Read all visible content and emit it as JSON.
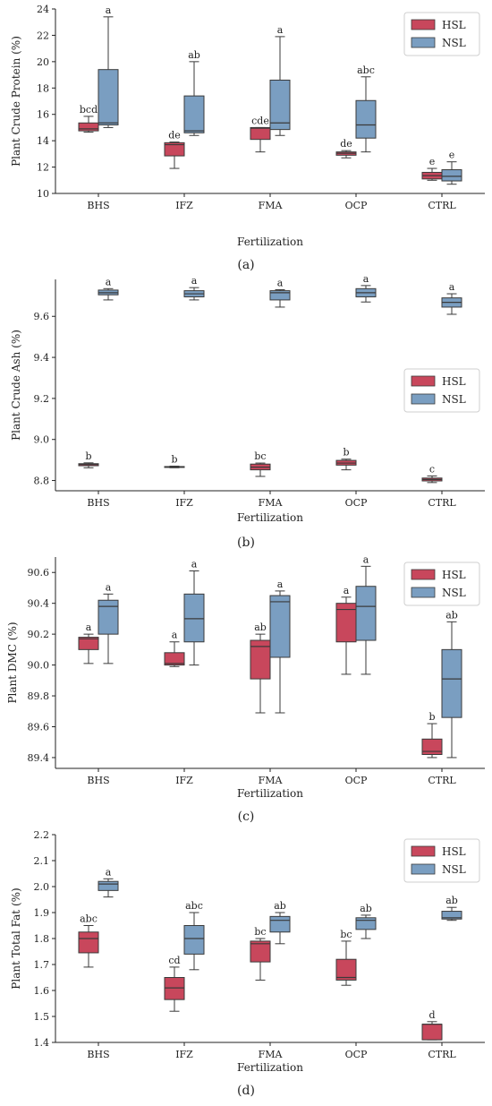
{
  "colors": {
    "HSL": "#c8475c",
    "NSL": "#7a9ec1",
    "line": "#3a3a3a"
  },
  "chart_data": [
    {
      "type": "box",
      "panel": "(a)",
      "ylabel": "Plant Crude Protein (%)",
      "xlabel": "Fertilization",
      "categories": [
        "BHS",
        "IFZ",
        "FMA",
        "OCP",
        "CTRL"
      ],
      "yticks": [
        "10",
        "12",
        "14",
        "16",
        "18",
        "20",
        "22",
        "24"
      ],
      "ylim": [
        10,
        24
      ],
      "legend_position": "top-right",
      "series": [
        {
          "name": "HSL",
          "boxes": [
            {
              "min": 14.65,
              "q1": 14.75,
              "median": 14.9,
              "q3": 15.35,
              "max": 15.85,
              "letter": "bcd"
            },
            {
              "min": 11.9,
              "q1": 12.85,
              "median": 13.7,
              "q3": 13.85,
              "max": 13.9,
              "letter": "de"
            },
            {
              "min": 13.15,
              "q1": 14.1,
              "median": 14.95,
              "q3": 15.0,
              "max": 15.0,
              "letter": "cde"
            },
            {
              "min": 12.7,
              "q1": 12.9,
              "median": 13.05,
              "q3": 13.15,
              "max": 13.25,
              "letter": "de"
            },
            {
              "min": 11.0,
              "q1": 11.1,
              "median": 11.35,
              "q3": 11.6,
              "max": 11.9,
              "letter": "e"
            }
          ]
        },
        {
          "name": "NSL",
          "boxes": [
            {
              "min": 15.0,
              "q1": 15.2,
              "median": 15.35,
              "q3": 19.4,
              "max": 23.4,
              "letter": "a"
            },
            {
              "min": 14.4,
              "q1": 14.6,
              "median": 14.75,
              "q3": 17.4,
              "max": 20.0,
              "letter": "ab"
            },
            {
              "min": 14.4,
              "q1": 14.85,
              "median": 15.35,
              "q3": 18.6,
              "max": 21.9,
              "letter": "a"
            },
            {
              "min": 13.15,
              "q1": 14.2,
              "median": 15.2,
              "q3": 17.05,
              "max": 18.85,
              "letter": "abc"
            },
            {
              "min": 10.7,
              "q1": 10.95,
              "median": 11.3,
              "q3": 11.8,
              "max": 12.4,
              "letter": "e"
            }
          ]
        }
      ]
    },
    {
      "type": "box",
      "panel": "(b)",
      "ylabel": "Plant Crude Ash (%)",
      "xlabel": "Fertilization",
      "categories": [
        "BHS",
        "IFZ",
        "FMA",
        "OCP",
        "CTRL"
      ],
      "yticks": [
        "8.8",
        "9.0",
        "9.2",
        "9.4",
        "9.6"
      ],
      "ylim": [
        8.75,
        9.78
      ],
      "legend_position": "center-right",
      "series": [
        {
          "name": "HSL",
          "boxes": [
            {
              "min": 8.862,
              "q1": 8.872,
              "median": 8.878,
              "q3": 8.882,
              "max": 8.886,
              "letter": "b"
            },
            {
              "min": 8.862,
              "q1": 8.864,
              "median": 8.866,
              "q3": 8.868,
              "max": 8.87,
              "letter": "b"
            },
            {
              "min": 8.82,
              "q1": 8.852,
              "median": 8.865,
              "q3": 8.88,
              "max": 8.885,
              "letter": "bc"
            },
            {
              "min": 8.852,
              "q1": 8.875,
              "median": 8.885,
              "q3": 8.898,
              "max": 8.904,
              "letter": "b"
            },
            {
              "min": 8.79,
              "q1": 8.798,
              "median": 8.805,
              "q3": 8.812,
              "max": 8.822,
              "letter": "c"
            }
          ]
        },
        {
          "name": "NSL",
          "boxes": [
            {
              "min": 9.68,
              "q1": 9.705,
              "median": 9.715,
              "q3": 9.728,
              "max": 9.735,
              "letter": "a"
            },
            {
              "min": 9.68,
              "q1": 9.695,
              "median": 9.71,
              "q3": 9.725,
              "max": 9.74,
              "letter": "a"
            },
            {
              "min": 9.645,
              "q1": 9.68,
              "median": 9.715,
              "q3": 9.725,
              "max": 9.73,
              "letter": "a"
            },
            {
              "min": 9.67,
              "q1": 9.695,
              "median": 9.715,
              "q3": 9.735,
              "max": 9.75,
              "letter": "a"
            },
            {
              "min": 9.61,
              "q1": 9.645,
              "median": 9.668,
              "q3": 9.69,
              "max": 9.71,
              "letter": "a"
            }
          ]
        }
      ]
    },
    {
      "type": "box",
      "panel": "(c)",
      "ylabel": "Plant DMC (%)",
      "xlabel": "Fertilization",
      "categories": [
        "BHS",
        "IFZ",
        "FMA",
        "OCP",
        "CTRL"
      ],
      "yticks": [
        "89.4",
        "89.6",
        "89.8",
        "90.0",
        "90.2",
        "90.4",
        "90.6"
      ],
      "ylim": [
        89.33,
        90.7
      ],
      "legend_position": "top-right",
      "series": [
        {
          "name": "HSL",
          "boxes": [
            {
              "min": 90.01,
              "q1": 90.1,
              "median": 90.17,
              "q3": 90.18,
              "max": 90.2,
              "letter": "a"
            },
            {
              "min": 89.99,
              "q1": 90.0,
              "median": 90.01,
              "q3": 90.08,
              "max": 90.15,
              "letter": "a"
            },
            {
              "min": 89.69,
              "q1": 89.91,
              "median": 90.12,
              "q3": 90.16,
              "max": 90.2,
              "letter": "ab"
            },
            {
              "min": 89.94,
              "q1": 90.15,
              "median": 90.36,
              "q3": 90.4,
              "max": 90.44,
              "letter": "a"
            },
            {
              "min": 89.4,
              "q1": 89.42,
              "median": 89.44,
              "q3": 89.52,
              "max": 89.62,
              "letter": "b"
            }
          ]
        },
        {
          "name": "NSL",
          "boxes": [
            {
              "min": 90.01,
              "q1": 90.2,
              "median": 90.38,
              "q3": 90.42,
              "max": 90.46,
              "letter": "a"
            },
            {
              "min": 90.0,
              "q1": 90.15,
              "median": 90.3,
              "q3": 90.46,
              "max": 90.61,
              "letter": "a"
            },
            {
              "min": 89.69,
              "q1": 90.05,
              "median": 90.41,
              "q3": 90.45,
              "max": 90.48,
              "letter": "a"
            },
            {
              "min": 89.94,
              "q1": 90.16,
              "median": 90.38,
              "q3": 90.51,
              "max": 90.64,
              "letter": "a"
            },
            {
              "min": 89.4,
              "q1": 89.66,
              "median": 89.91,
              "q3": 90.1,
              "max": 90.28,
              "letter": "ab"
            }
          ]
        }
      ]
    },
    {
      "type": "box",
      "panel": "(d)",
      "ylabel": "Plant Total Fat (%)",
      "xlabel": "Fertilization",
      "categories": [
        "BHS",
        "IFZ",
        "FMA",
        "OCP",
        "CTRL"
      ],
      "yticks": [
        "1.4",
        "1.5",
        "1.6",
        "1.7",
        "1.8",
        "1.9",
        "2.0",
        "2.1",
        "2.2"
      ],
      "ylim": [
        1.4,
        2.2
      ],
      "legend_position": "top-right",
      "series": [
        {
          "name": "HSL",
          "boxes": [
            {
              "min": 1.69,
              "q1": 1.745,
              "median": 1.8,
              "q3": 1.825,
              "max": 1.85,
              "letter": "abc"
            },
            {
              "min": 1.52,
              "q1": 1.565,
              "median": 1.61,
              "q3": 1.65,
              "max": 1.69,
              "letter": "cd"
            },
            {
              "min": 1.64,
              "q1": 1.71,
              "median": 1.78,
              "q3": 1.79,
              "max": 1.8,
              "letter": "bc"
            },
            {
              "min": 1.62,
              "q1": 1.64,
              "median": 1.65,
              "q3": 1.72,
              "max": 1.79,
              "letter": "bc"
            },
            {
              "min": 1.41,
              "q1": 1.41,
              "median": 1.47,
              "q3": 1.47,
              "max": 1.48,
              "letter": "d"
            }
          ]
        },
        {
          "name": "NSL",
          "boxes": [
            {
              "min": 1.96,
              "q1": 1.985,
              "median": 2.01,
              "q3": 2.02,
              "max": 2.03,
              "letter": "a"
            },
            {
              "min": 1.68,
              "q1": 1.74,
              "median": 1.8,
              "q3": 1.85,
              "max": 1.9,
              "letter": "abc"
            },
            {
              "min": 1.78,
              "q1": 1.825,
              "median": 1.87,
              "q3": 1.885,
              "max": 1.9,
              "letter": "ab"
            },
            {
              "min": 1.8,
              "q1": 1.835,
              "median": 1.87,
              "q3": 1.88,
              "max": 1.89,
              "letter": "ab"
            },
            {
              "min": 1.87,
              "q1": 1.875,
              "median": 1.88,
              "q3": 1.905,
              "max": 1.92,
              "letter": "ab"
            }
          ]
        }
      ]
    }
  ]
}
